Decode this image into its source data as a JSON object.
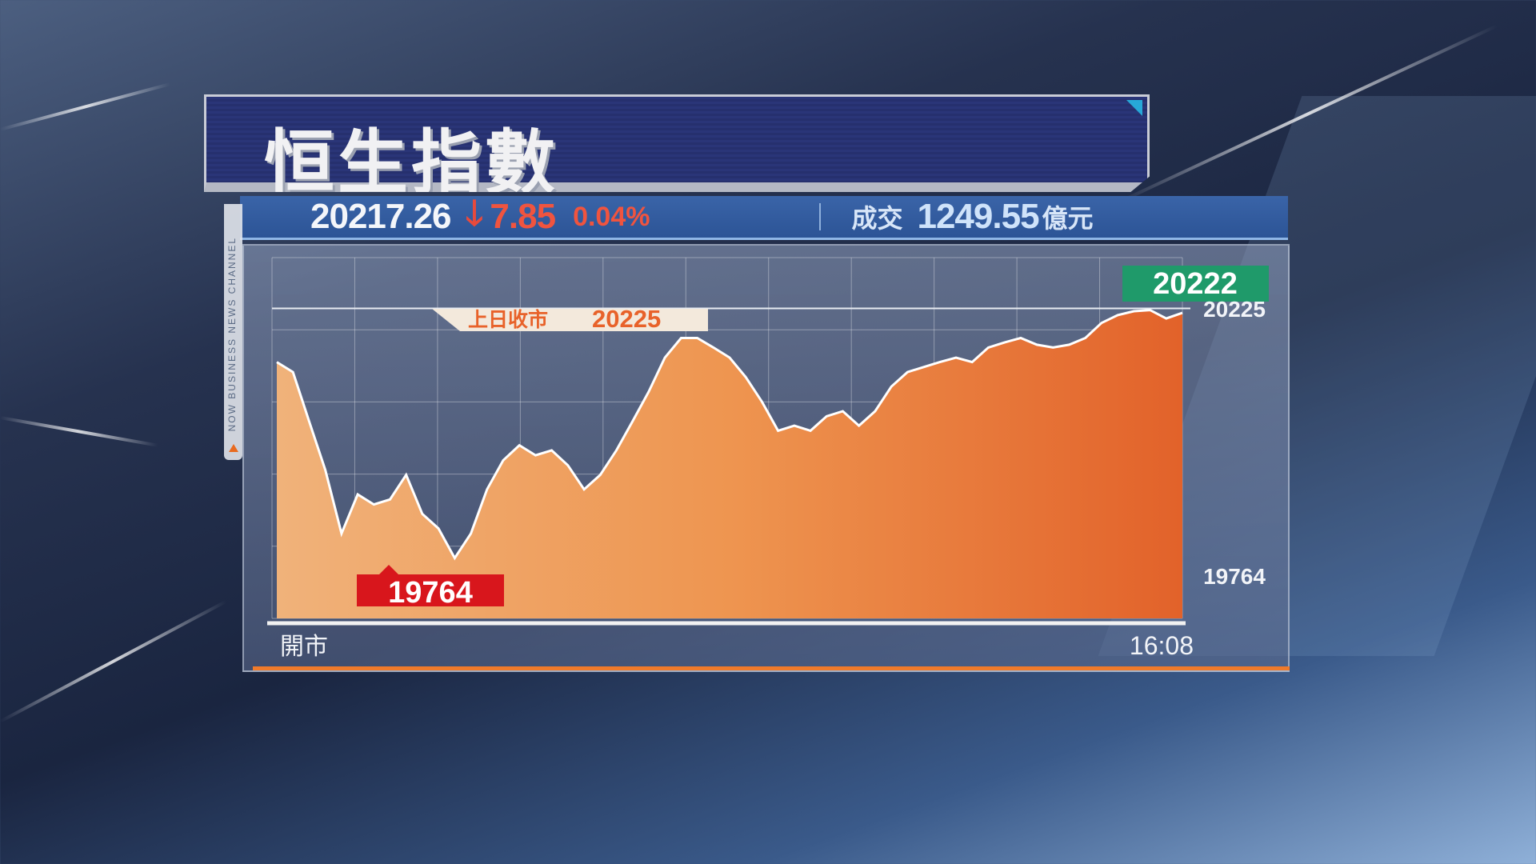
{
  "header": {
    "title": "恒生指數"
  },
  "ticker": {
    "index_value": "20217.26",
    "direction": "down",
    "change": "7.85",
    "change_pct": "0.04%",
    "turnover_label": "成交",
    "turnover": "1249.55",
    "turnover_unit": "億元"
  },
  "brand": {
    "channel": "NOW BUSINESS NEWS CHANNEL"
  },
  "colors": {
    "down": "#f0543f",
    "area": "#e8772e",
    "high_badge": "#1f9a6a",
    "low_badge": "#d8161c",
    "title_bg": "#2a3578"
  },
  "chart_data": {
    "type": "area",
    "title": "恒生指數",
    "x_start_label": "開市",
    "x_end_label": "16:08",
    "ylim": [
      19670,
      20316
    ],
    "grid": true,
    "prev_close": {
      "label": "上日收市",
      "value": 20225
    },
    "high": {
      "label": "20222",
      "value": 20222
    },
    "low": {
      "label": "19764",
      "value": 19764
    },
    "right_labels": [
      "20225",
      "19764"
    ],
    "values": [
      20129,
      20111,
      20023,
      19936,
      19822,
      19892,
      19874,
      19883,
      19927,
      19857,
      19831,
      19778,
      19822,
      19901,
      19953,
      19980,
      19962,
      19971,
      19944,
      19901,
      19927,
      19971,
      20023,
      20076,
      20137,
      20172,
      20172,
      20155,
      20137,
      20102,
      20058,
      20006,
      20015,
      20006,
      20032,
      20041,
      20015,
      20041,
      20085,
      20111,
      20120,
      20129,
      20137,
      20129,
      20155,
      20164,
      20172,
      20160,
      20155,
      20160,
      20172,
      20199,
      20213,
      20220,
      20222,
      20207,
      20217
    ]
  }
}
